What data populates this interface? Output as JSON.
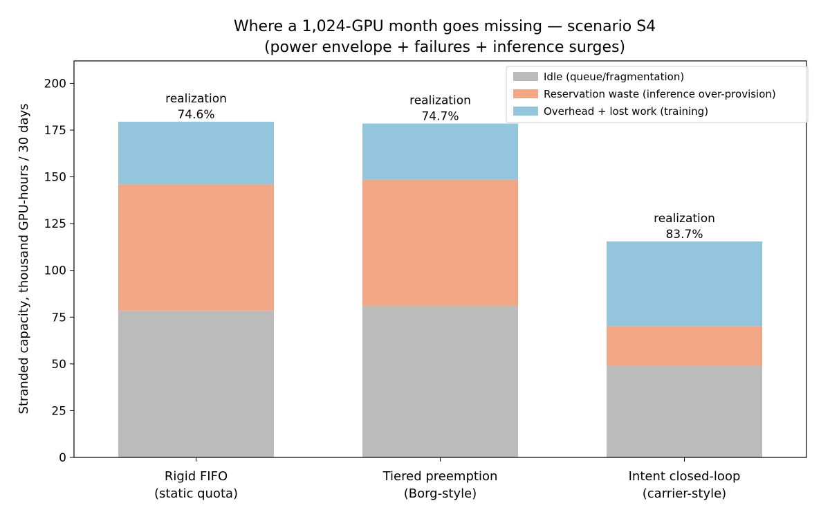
{
  "chart_data": {
    "type": "bar",
    "stacked": true,
    "title": "Where a 1,024-GPU month goes missing — scenario S4",
    "subtitle": "(power envelope + failures + inference surges)",
    "xlabel": "",
    "ylabel": "Stranded capacity, thousand GPU-hours / 30 days",
    "ylim": [
      0,
      212
    ],
    "yticks": [
      0,
      25,
      50,
      75,
      100,
      125,
      150,
      175,
      200
    ],
    "categories": [
      [
        "Rigid FIFO",
        "(static quota)"
      ],
      [
        "Tiered preemption",
        "(Borg-style)"
      ],
      [
        "Intent closed-loop",
        "(carrier-style)"
      ]
    ],
    "series": [
      {
        "name": "Idle (queue/fragmentation)",
        "color": "#bbbbbb",
        "values": [
          78.5,
          81.0,
          49.0
        ]
      },
      {
        "name": "Reservation waste (inference over-provision)",
        "color": "#f3a683",
        "values": [
          67.5,
          67.5,
          21.0
        ]
      },
      {
        "name": "Overhead + lost work (training)",
        "color": "#93c5dd",
        "values": [
          33.5,
          30.0,
          45.5
        ]
      }
    ],
    "annotations": [
      {
        "label": "realization",
        "value": "74.6%"
      },
      {
        "label": "realization",
        "value": "74.7%"
      },
      {
        "label": "realization",
        "value": "83.7%"
      }
    ],
    "legend_position": "top-right",
    "grid": false
  }
}
